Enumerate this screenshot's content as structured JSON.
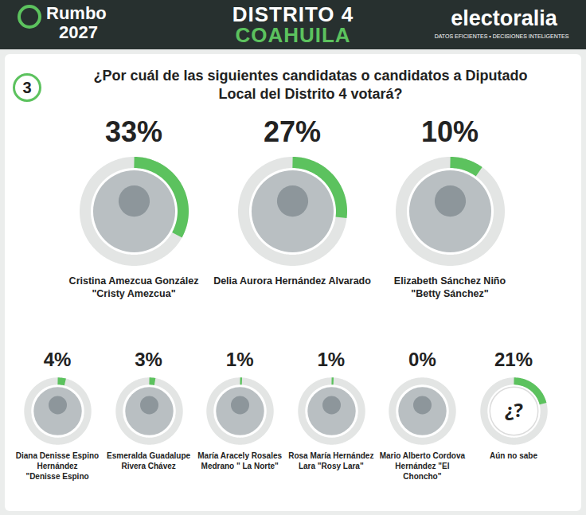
{
  "chart_data": {
    "type": "gauge",
    "header": {
      "left": [
        "Rumbo",
        "2027"
      ],
      "center": [
        "DISTRITO 4",
        "COAHUILA"
      ],
      "right": "electoralia",
      "right_subtitle": "DATOS EFICIENTES • DECISIONES INTELIGENTES"
    },
    "question_number": "3",
    "title": "¿Por cuál de las siguientes candidatas o candidatos a Diputado Local del Distrito 4 votará?",
    "categories": [
      "Cristina Amezcua González\n\"Cristy Amezcua\"",
      "Delia Aurora Hernández Alvarado",
      "Elizabeth Sánchez Niño\n\"Betty Sánchez\"",
      "Diana Denisse Espino Hernández\n\"Denisse Espino",
      "Esmeralda Guadalupe Rivera Chávez",
      "María Aracely Rosales Medrano \" La Norte\"",
      "Rosa María Hernández Lara \"Rosy Lara\"",
      "Mario Alberto Cordova Hernández \"El Choncho\"",
      "Aún no sabe"
    ],
    "values": [
      33,
      27,
      10,
      4,
      3,
      1,
      1,
      0,
      21
    ],
    "value_labels": [
      "33%",
      "27%",
      "10%",
      "4%",
      "3%",
      "1%",
      "1%",
      "0%",
      "21%"
    ],
    "ylim": [
      0,
      100
    ],
    "color": "#5cc25e",
    "data_labels": true,
    "tick_labels": false,
    "annotations": [
      {
        "category": "Aún no sabe",
        "text": "¿?"
      }
    ]
  }
}
